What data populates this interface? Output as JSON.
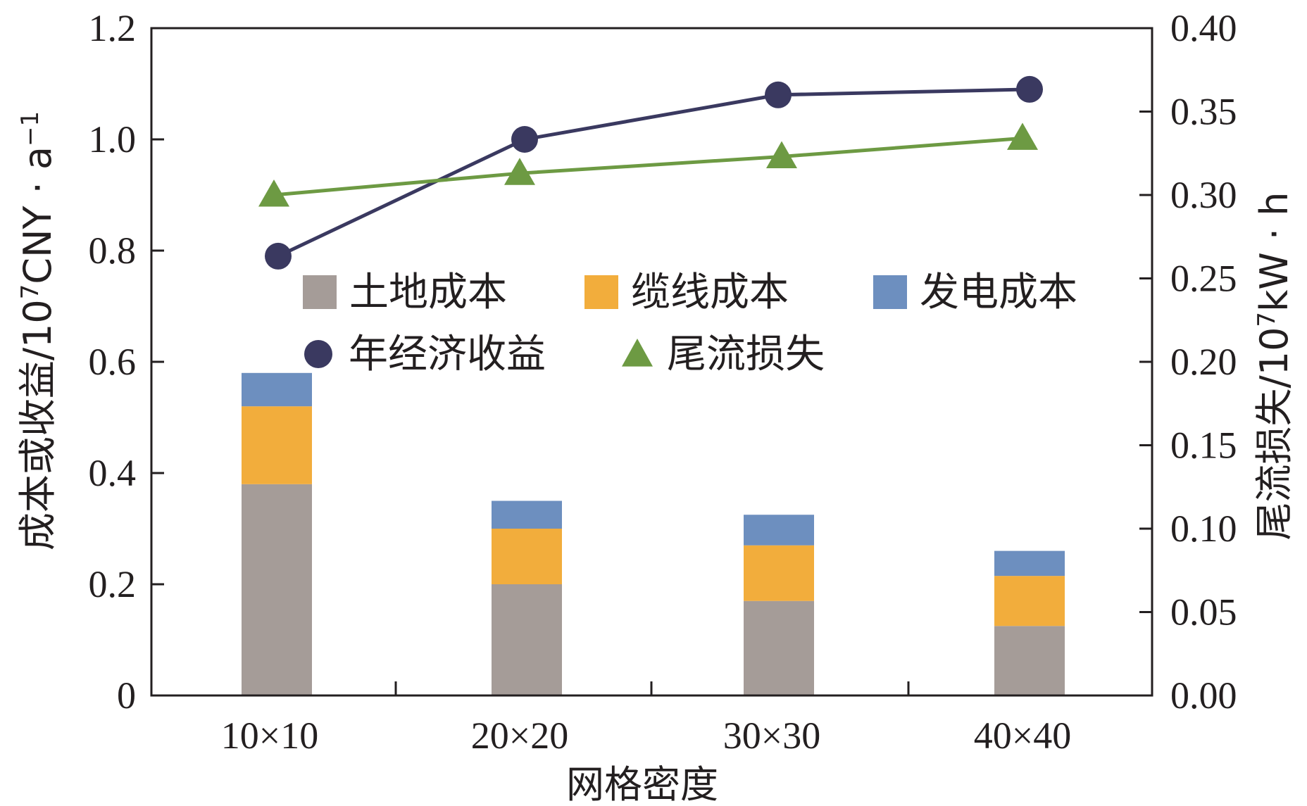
{
  "chart_data": {
    "type": "bar",
    "title": "",
    "xlabel": "网格密度",
    "ylabel_left": {
      "text": "成本或收益/10",
      "sup": "7",
      "text_after": "CNY · a",
      "sup_after": "−1"
    },
    "ylabel_right": {
      "text": "尾流损失/10",
      "sup": "7",
      "text_after": "kW · h"
    },
    "categories": [
      "10×10",
      "20×20",
      "30×30",
      "40×40"
    ],
    "ylim_left": [
      0,
      1.2
    ],
    "yticks_left": [
      "0",
      "0.2",
      "0.4",
      "0.6",
      "0.8",
      "1.0",
      "1.2"
    ],
    "ylim_right": [
      0,
      0.4
    ],
    "yticks_right": [
      "0.00",
      "0.05",
      "0.10",
      "0.15",
      "0.20",
      "0.25",
      "0.30",
      "0.35",
      "0.40"
    ],
    "grid": false,
    "legend_placement": "center",
    "stacked_series": [
      {
        "name": "土地成本",
        "color": "#a59c98",
        "values": [
          0.38,
          0.2,
          0.17,
          0.125
        ]
      },
      {
        "name": "缆线成本",
        "color": "#f2ad3c",
        "values": [
          0.14,
          0.1,
          0.1,
          0.09
        ]
      },
      {
        "name": "发电成本",
        "color": "#6d8fbf",
        "values": [
          0.06,
          0.05,
          0.055,
          0.045
        ]
      }
    ],
    "line_series": [
      {
        "name": "年经济收益",
        "axis": "left",
        "marker": "circle",
        "color": "#3a3960",
        "values": [
          0.79,
          1.0,
          1.08,
          1.09
        ]
      },
      {
        "name": "尾流损失",
        "axis": "right",
        "marker": "triangle",
        "color": "#6d9a43",
        "values": [
          0.3,
          0.313,
          0.323,
          0.334
        ]
      }
    ]
  }
}
